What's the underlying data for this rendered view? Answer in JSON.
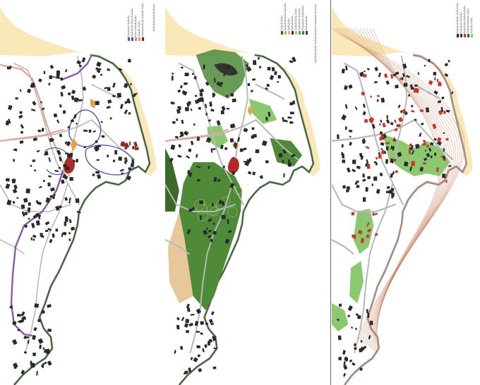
{
  "panels": [
    {
      "id": "mobility",
      "legend": [
        {
          "label": "ÂµÂµÂµÂµ ÂµÂµÂµ",
          "color": "#7b4fa0"
        },
        {
          "label": "ÂµÂµÂµÂµ ÂµÂµ ÂµÂµÂµ",
          "color": "#4a5aa8"
        },
        {
          "label": "ÂµÂµ ÂµÂµÂµÂµÂµ",
          "color": "#e8837a"
        },
        {
          "label": "ÂµÂµÂµ ÂµÂµ",
          "color": "#e8a04a"
        },
        {
          "label": "ÂµÂµÂµÂµÂµÂµ ÂµÂµÂµ ÂµÂµ",
          "color": "#7a1c1c"
        }
      ],
      "side_note": "ÂµÂµÂµÂµÂµÂµÂµÂµÂµ"
    },
    {
      "id": "green",
      "legend": [
        {
          "label": "ÂµÂµÂµÂµÂµ",
          "color": "#2f5d28"
        },
        {
          "label": "ÂµÂµÂµÂµÂµÂµ ÂµÂµÂµ",
          "color": "#e8a04a"
        },
        {
          "label": "ÂµÂµÂµÂµ",
          "color": "#e8b078"
        },
        {
          "label": "ÂµÂµÂµÂµÂµ",
          "color": "#4a2c1c"
        },
        {
          "label": "ÂµÂµÂµÂµÂµ ÂµÂµ",
          "color": "#a8c878"
        },
        {
          "label": "ÂµÂµÂµÂµ ÂµÂµÂµ",
          "color": "#6a9a48"
        },
        {
          "label": "ÂµÂµÂµÂµ ÂµÂµÂµÂµ",
          "color": "#3e7a30"
        },
        {
          "label": "ÂµÂµÂµÂµÂµ",
          "color": "#2a4a20"
        }
      ],
      "side_note": "ÂµÂµÂµÂµÂµÂµ ÂµÂµÂµÂµÂµÂµ ÂµÂµÂµÂµ ÂµÂµÂµ"
    },
    {
      "id": "built",
      "legend": [
        {
          "label": "ÂµÂµÂµÂµÂµÂµ ÂµÂµÂµÂµ",
          "color": "#3a1a12"
        },
        {
          "label": "ÂµÂµÂµÂµ ÂµÂµÂµ",
          "color": "#5a2a1c"
        },
        {
          "label": "ÂµÂµÂµÂµ ÂµÂµÂµÂµÂµ",
          "color": "#b83a2a"
        },
        {
          "label": "ÂµÂµÂµÂµÂµÂµ ÂµÂµ",
          "color": "#2f5d28"
        },
        {
          "label": "ÂµÂµÂµ ÂµÂµ",
          "color": "#8cc870"
        }
      ],
      "side_note": ""
    }
  ],
  "colors": {
    "sand": "#fbe8b8",
    "coast_green": "#2e5e2a",
    "coast_grey": "#9a9a9a",
    "road_pink": "#e8a098",
    "road_grey": "#b8b8b8",
    "building": "#2a2a2a",
    "building_red": "#c8372a",
    "park_green": "#4e8a38",
    "dark_green": "#3c6a2a",
    "light_green": "#8cc870",
    "contour": "#c87a5a",
    "purple": "#8a5aa8",
    "blue": "#4a5aa8"
  }
}
